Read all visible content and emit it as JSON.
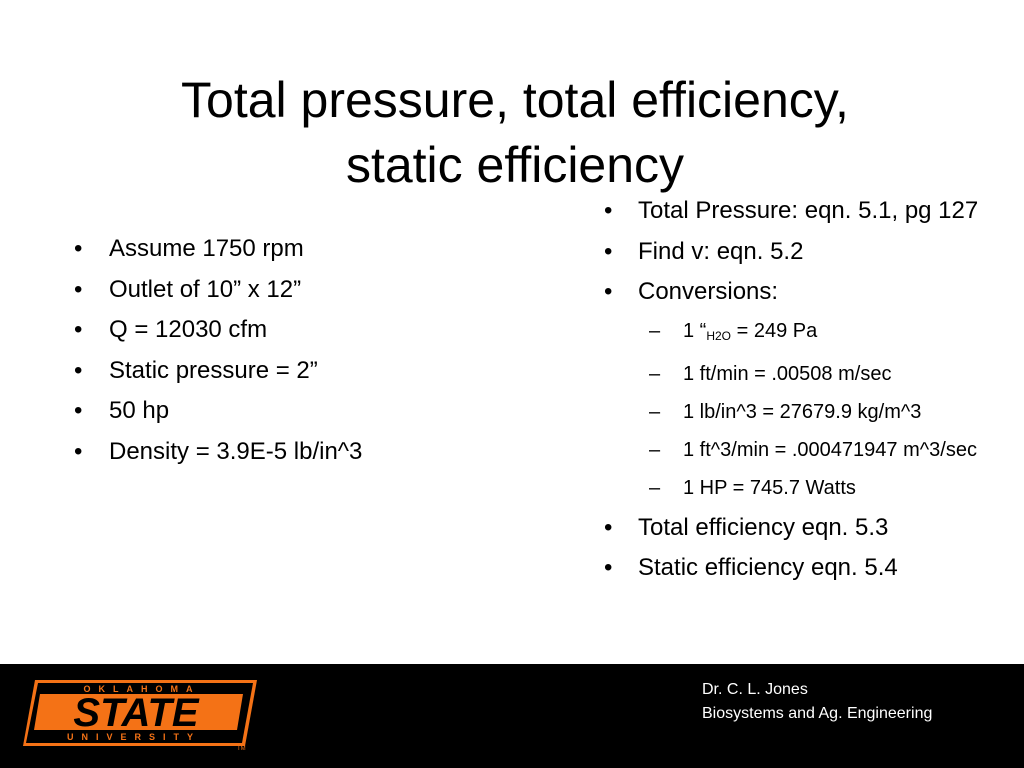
{
  "slide": {
    "title_line1": "Total pressure, total efficiency,",
    "title_line2": "static efficiency"
  },
  "left_bullets": [
    "Assume 1750 rpm",
    "Outlet of 10” x 12”",
    "Q = 12030 cfm",
    "Static pressure = 2”",
    "50 hp",
    "Density = 3.9E-5 lb/in^3"
  ],
  "right_list": {
    "total_pressure": "Total Pressure: eqn. 5.1, pg 127",
    "find_v": "Find v:  eqn. 5.2",
    "conversions": "Conversions:",
    "conv_1_pre": "1 “",
    "conv_1_sub": "H2O",
    "conv_1_post": " = 249 Pa",
    "conv_2": "1 ft/min = .00508 m/sec",
    "conv_3": "1 lb/in^3 = 27679.9 kg/m^3",
    "conv_4": "1 ft^3/min = .000471947 m^3/sec",
    "conv_5": "1 HP = 745.7 Watts",
    "total_eff": "Total efficiency  eqn. 5.3",
    "static_eff": "Static efficiency eqn. 5.4"
  },
  "bullet_char": "•",
  "dash_char": "–",
  "footer": {
    "logo_top": "OKLAHOMA",
    "logo_main": "STATE",
    "logo_bottom": "UNIVERSITY",
    "trademark": "TM",
    "author": "Dr. C. L. Jones",
    "department": "Biosystems and Ag. Engineering"
  },
  "colors": {
    "orange": "#F47216",
    "footer_bg": "#000000",
    "text": "#000000"
  }
}
